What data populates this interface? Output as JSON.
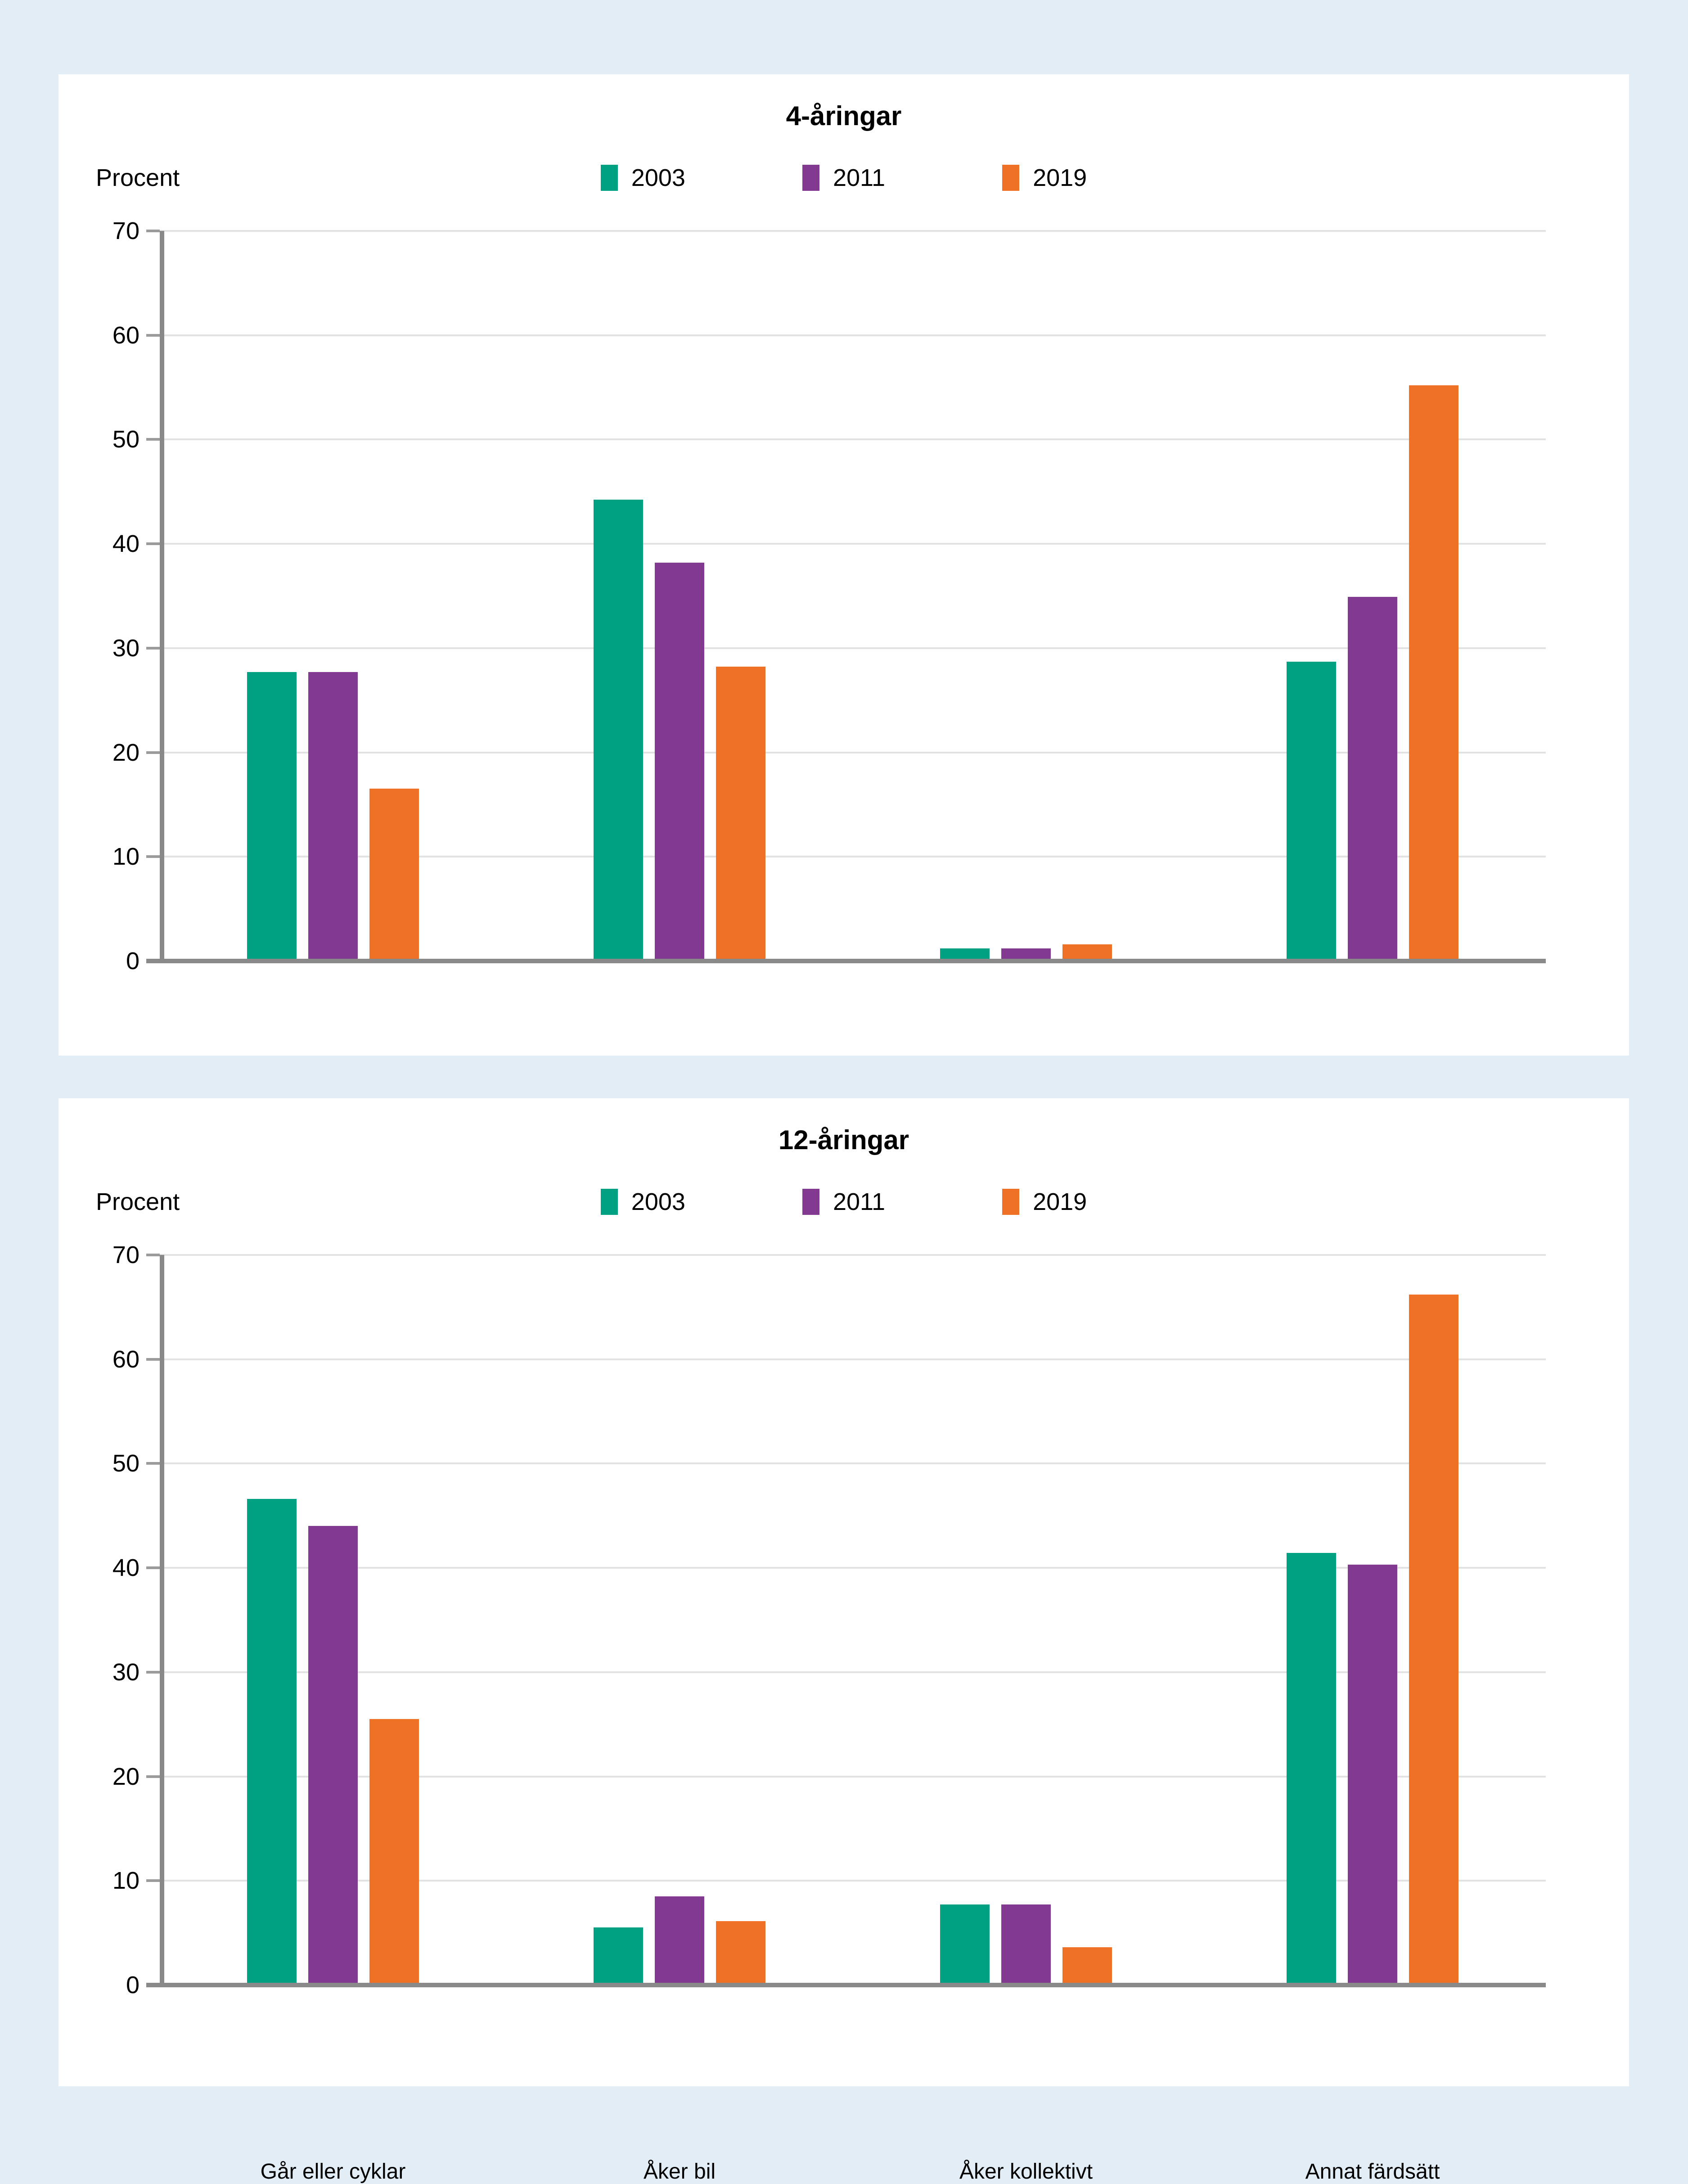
{
  "page": {
    "background": "#e3edf5",
    "panel_background": "#ffffff"
  },
  "colors": {
    "series_2003": "#00a183",
    "series_2011": "#823a91",
    "series_2019": "#ef7125",
    "axis": "#898989",
    "gridline": "#e2e2e2",
    "tick": "#9b9b9b",
    "text": "#000000"
  },
  "chart_data": [
    {
      "type": "bar",
      "title": "4-åringar",
      "ylabel": "Procent",
      "xlabel": "",
      "ylim": [
        0,
        70
      ],
      "y_ticks": [
        0,
        10,
        20,
        30,
        40,
        50,
        60,
        70
      ],
      "grid": true,
      "legend_position": "top",
      "categories": [
        "Går eller cyklar",
        "Åker bil",
        "Åker kollektivt",
        "Annat färdsätt"
      ],
      "series": [
        {
          "name": "2003",
          "values": [
            27.5,
            44,
            1,
            28.5
          ]
        },
        {
          "name": "2011",
          "values": [
            27.5,
            38,
            1,
            34.7
          ]
        },
        {
          "name": "2019",
          "values": [
            16.3,
            28,
            1.4,
            55
          ]
        }
      ]
    },
    {
      "type": "bar",
      "title": "12-åringar",
      "ylabel": "Procent",
      "xlabel": "",
      "ylim": [
        0,
        70
      ],
      "y_ticks": [
        0,
        10,
        20,
        30,
        40,
        50,
        60,
        70
      ],
      "grid": true,
      "legend_position": "top",
      "categories": [
        "Går eller cyklar",
        "Åker bil",
        "Åker kollektivt",
        "Annat färdsätt"
      ],
      "series": [
        {
          "name": "2003",
          "values": [
            46.4,
            5.3,
            7.5,
            41.2
          ]
        },
        {
          "name": "2011",
          "values": [
            43.8,
            8.3,
            7.5,
            40.1
          ]
        },
        {
          "name": "2019",
          "values": [
            25.3,
            5.9,
            3.4,
            66
          ]
        }
      ]
    }
  ]
}
